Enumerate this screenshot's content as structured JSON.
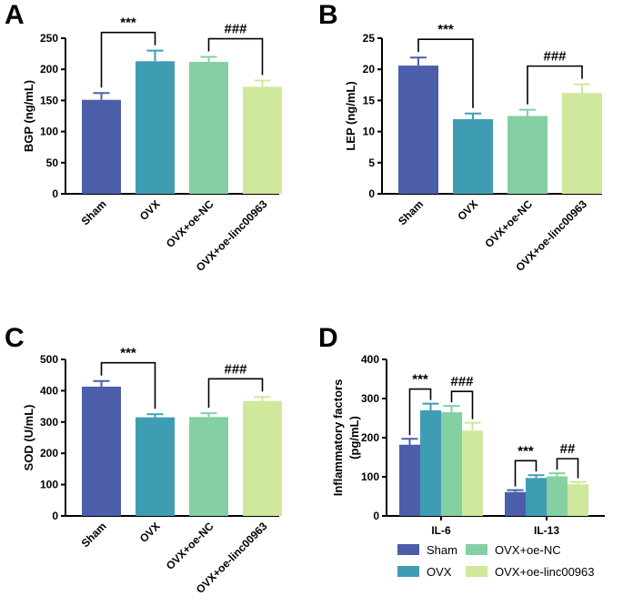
{
  "colors": {
    "Sham": "#4c5ea9",
    "OVX": "#3f9db3",
    "OVX+oe-NC": "#84d0a2",
    "OVX+oe-linc00963": "#cfe89b"
  },
  "chart_data": [
    {
      "panel": "A",
      "type": "bar",
      "categories": [
        "Sham",
        "OVX",
        "OVX+oe-NC",
        "OVX+oe-linc00963"
      ],
      "values": [
        151,
        213,
        212,
        172
      ],
      "errors": [
        11,
        17,
        8,
        10
      ],
      "ylabel": "BGP (ng/mL)",
      "ylim": [
        0,
        250
      ],
      "yticks": [
        "0",
        "50",
        "100",
        "150",
        "200",
        "250"
      ],
      "significance": [
        {
          "from": 0,
          "to": 1,
          "label": "***"
        },
        {
          "from": 2,
          "to": 3,
          "label": "###"
        }
      ]
    },
    {
      "panel": "B",
      "type": "bar",
      "categories": [
        "Sham",
        "OVX",
        "OVX+oe-NC",
        "OVX+oe-linc00963"
      ],
      "values": [
        20.6,
        12.0,
        12.5,
        16.2
      ],
      "errors": [
        1.3,
        0.9,
        1.0,
        1.4
      ],
      "ylabel": "LEP (ng/mL)",
      "ylim": [
        0,
        25
      ],
      "yticks": [
        "0",
        "5",
        "10",
        "15",
        "20",
        "25"
      ],
      "significance": [
        {
          "from": 0,
          "to": 1,
          "label": "***"
        },
        {
          "from": 2,
          "to": 3,
          "label": "###"
        }
      ]
    },
    {
      "panel": "C",
      "type": "bar",
      "categories": [
        "Sham",
        "OVX",
        "OVX+oe-NC",
        "OVX+oe-linc00963"
      ],
      "values": [
        413,
        315,
        316,
        367
      ],
      "errors": [
        18,
        10,
        12,
        13
      ],
      "ylabel": "SOD (U/mL)",
      "ylim": [
        0,
        500
      ],
      "yticks": [
        "0",
        "100",
        "200",
        "300",
        "400",
        "500"
      ],
      "significance": [
        {
          "from": 0,
          "to": 1,
          "label": "***"
        },
        {
          "from": 2,
          "to": 3,
          "label": "###"
        }
      ]
    },
    {
      "panel": "D",
      "type": "grouped_bar",
      "groups": [
        "IL-6",
        "IL-13"
      ],
      "series": [
        {
          "name": "Sham",
          "values": [
            182,
            61
          ],
          "errors": [
            15,
            5
          ]
        },
        {
          "name": "OVX",
          "values": [
            270,
            97
          ],
          "errors": [
            17,
            7
          ]
        },
        {
          "name": "OVX+oe-NC",
          "values": [
            265,
            101
          ],
          "errors": [
            16,
            8
          ]
        },
        {
          "name": "OVX+oe-linc00963",
          "values": [
            218,
            81
          ],
          "errors": [
            20,
            6
          ]
        }
      ],
      "ylabel_lines": [
        "Inflammatory factors",
        "(pg/mL)"
      ],
      "ylim": [
        0,
        400
      ],
      "yticks": [
        "0",
        "100",
        "200",
        "300",
        "400"
      ],
      "significance": [
        {
          "group": 0,
          "from": 0,
          "to": 1,
          "label": "***"
        },
        {
          "group": 0,
          "from": 2,
          "to": 3,
          "label": "###"
        },
        {
          "group": 1,
          "from": 0,
          "to": 1,
          "label": "***"
        },
        {
          "group": 1,
          "from": 2,
          "to": 3,
          "label": "##"
        }
      ],
      "legend": [
        "Sham",
        "OVX",
        "OVX+oe-NC",
        "OVX+oe-linc00963"
      ]
    }
  ]
}
